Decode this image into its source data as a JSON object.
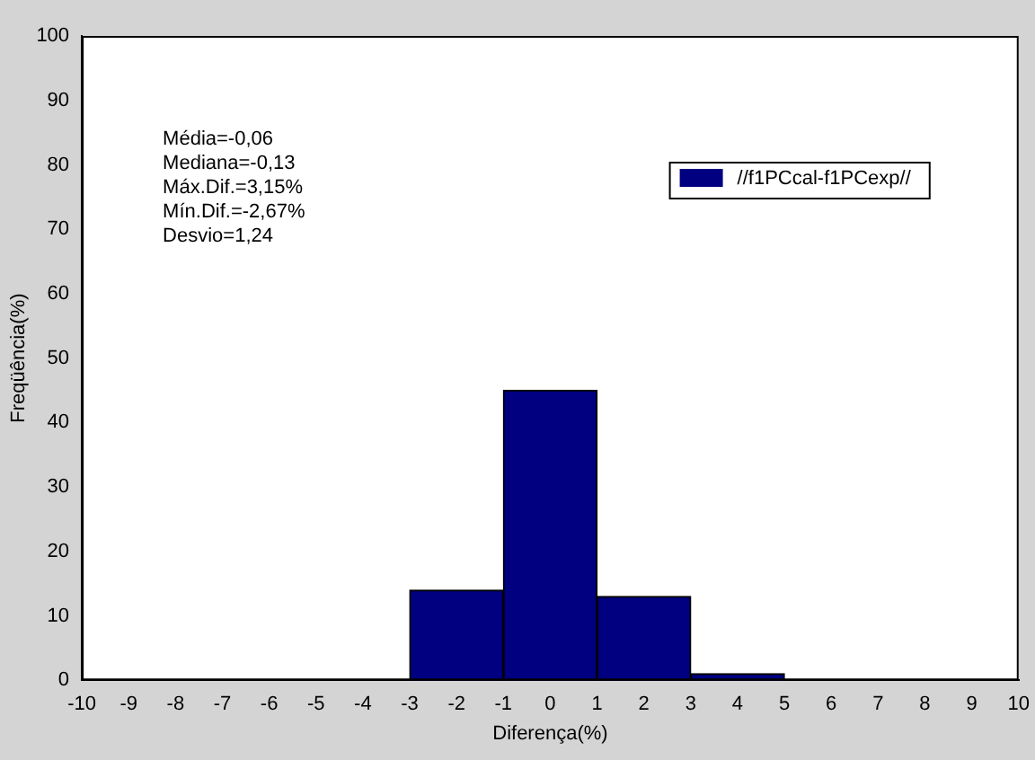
{
  "chart_data": {
    "type": "histogram",
    "xlabel": "Diferença(%)",
    "ylabel": "Freqüência(%)",
    "bins": [
      -3,
      -1,
      1,
      3,
      5
    ],
    "series": [
      {
        "name": "//f1PCcal-f1PCexp//",
        "color": "#000080",
        "values": [
          14,
          45,
          13,
          1
        ]
      }
    ],
    "xlim": [
      -10,
      10
    ],
    "xticks": [
      -10,
      -9,
      -8,
      -7,
      -6,
      -5,
      -4,
      -3,
      -2,
      -1,
      0,
      1,
      2,
      3,
      4,
      5,
      6,
      7,
      8,
      9,
      10
    ],
    "ylim": [
      0,
      100
    ],
    "yticks": [
      0,
      10,
      20,
      30,
      40,
      50,
      60,
      70,
      80,
      90,
      100
    ],
    "grid": false,
    "legend": "top right",
    "annotations": [
      "Média=-0,06",
      "Mediana=-0,13",
      "Máx.Dif.=3,15%",
      "Mín.Dif.=-2,67%",
      "Desvio=1,24"
    ]
  }
}
